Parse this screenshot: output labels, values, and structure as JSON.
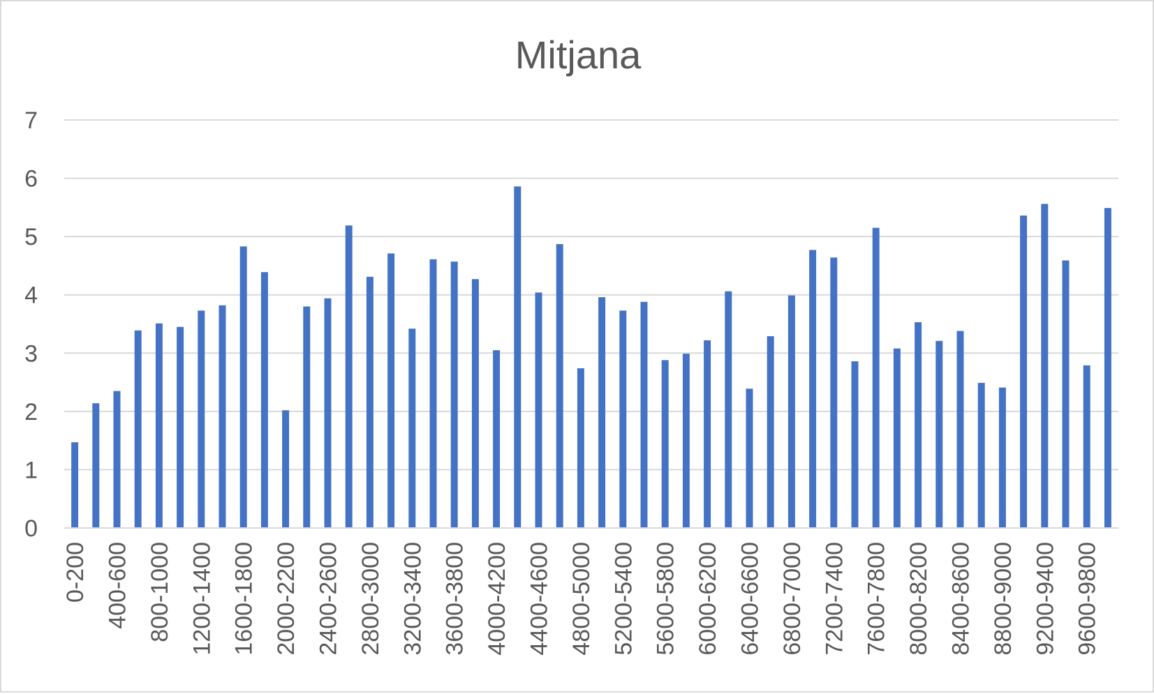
{
  "chart_data": {
    "type": "bar",
    "title": "Mitjana",
    "xlabel": "",
    "ylabel": "",
    "ylim": [
      0,
      7
    ],
    "yticks": [
      0,
      1,
      2,
      3,
      4,
      5,
      6,
      7
    ],
    "grid": true,
    "legend": "none",
    "bar_color": "#4472c4",
    "categories": [
      "0-200",
      "200-400",
      "400-600",
      "600-800",
      "800-1000",
      "1000-1200",
      "1200-1400",
      "1400-1600",
      "1600-1800",
      "1800-2000",
      "2000-2200",
      "2200-2400",
      "2400-2600",
      "2600-2800",
      "2800-3000",
      "3000-3200",
      "3200-3400",
      "3400-3600",
      "3600-3800",
      "3800-4000",
      "4000-4200",
      "4200-4400",
      "4400-4600",
      "4600-4800",
      "4800-5000",
      "5000-5200",
      "5200-5400",
      "5400-5600",
      "5600-5800",
      "5800-6000",
      "6000-6200",
      "6200-6400",
      "6400-6600",
      "6600-6800",
      "6800-7000",
      "7000-7200",
      "7200-7400",
      "7400-7600",
      "7600-7800",
      "7800-8000",
      "8000-8200",
      "8200-8400",
      "8400-8600",
      "8600-8800",
      "8800-9000",
      "9000-9200",
      "9200-9400",
      "9400-9600",
      "9600-9800",
      "9800-10000"
    ],
    "values": [
      1.47,
      2.14,
      2.35,
      3.39,
      3.51,
      3.45,
      3.73,
      3.82,
      4.83,
      4.39,
      2.02,
      3.8,
      3.94,
      5.19,
      4.31,
      4.71,
      3.42,
      4.61,
      4.57,
      4.27,
      3.05,
      5.86,
      4.04,
      4.87,
      2.74,
      3.96,
      3.73,
      3.88,
      2.88,
      2.99,
      3.22,
      4.06,
      2.39,
      3.29,
      3.99,
      4.77,
      4.64,
      2.86,
      5.15,
      3.08,
      3.53,
      3.21,
      3.38,
      2.49,
      2.41,
      5.36,
      5.56,
      4.59,
      2.79,
      5.49
    ],
    "visible_tick_labels": [
      "0-200",
      "400-600",
      "800-1000",
      "1200-1400",
      "1600-1800",
      "2000-2200",
      "2400-2600",
      "2800-3000",
      "3200-3400",
      "3600-3800",
      "4000-4200",
      "4400-4600",
      "4800-5000",
      "5200-5400",
      "5600-5800",
      "6000-6200",
      "6400-6600",
      "6800-7000",
      "7200-7400",
      "7600-7800",
      "8000-8200",
      "8400-8600",
      "8800-9000",
      "9200-9400",
      "9600-9800"
    ]
  }
}
